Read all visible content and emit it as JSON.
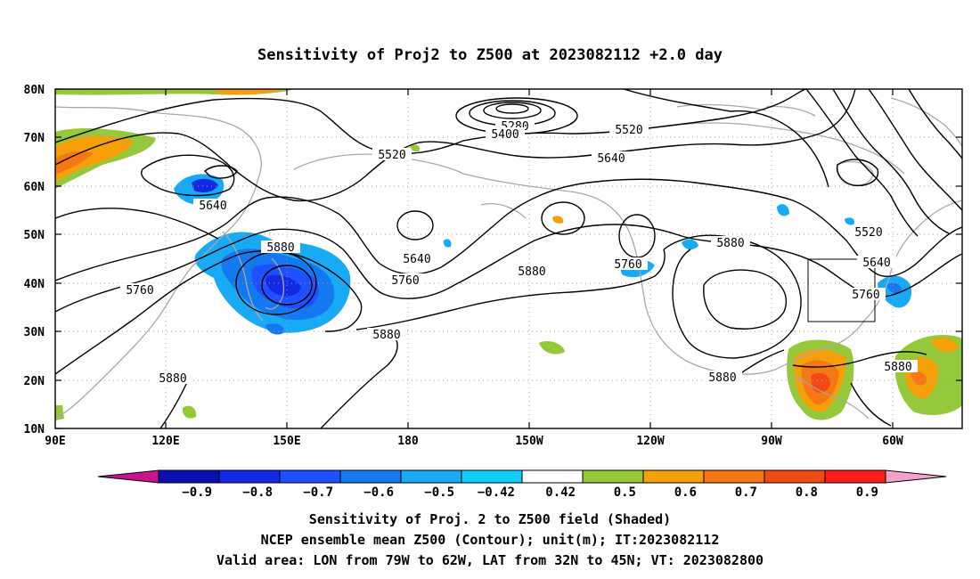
{
  "title": "Sensitivity of Proj2 to Z500 at 2023082112 +2.0 day",
  "axes": {
    "lat_labels": [
      "80N",
      "70N",
      "60N",
      "50N",
      "40N",
      "30N",
      "20N",
      "10N"
    ],
    "lon_labels": [
      "90E",
      "120E",
      "150E",
      "180",
      "150W",
      "120W",
      "90W",
      "60W"
    ]
  },
  "contour_labels": [
    {
      "text": "5280"
    },
    {
      "text": "5400"
    },
    {
      "text": "5520"
    },
    {
      "text": "5520"
    },
    {
      "text": "5640"
    },
    {
      "text": "5640"
    },
    {
      "text": "5640"
    },
    {
      "text": "5640"
    },
    {
      "text": "5760"
    },
    {
      "text": "5760"
    },
    {
      "text": "5760"
    },
    {
      "text": "5760"
    },
    {
      "text": "5880"
    },
    {
      "text": "5880"
    },
    {
      "text": "5880"
    },
    {
      "text": "5880"
    },
    {
      "text": "5880"
    },
    {
      "text": "5880"
    },
    {
      "text": "5880"
    },
    {
      "text": "5520"
    }
  ],
  "colorbar": {
    "labels": [
      "-0.9",
      "-0.8",
      "-0.7",
      "-0.6",
      "-0.5",
      "-0.42",
      "0.42",
      "0.5",
      "0.6",
      "0.7",
      "0.8",
      "0.9"
    ],
    "colors": [
      "#0b0fb0",
      "#1429e6",
      "#1e50ff",
      "#1478f0",
      "#19aaf5",
      "#0fcdff",
      "#ffffff",
      "#96c83c",
      "#f5a00a",
      "#f57814",
      "#f04b14",
      "#ff1e1e"
    ],
    "end_low": "#c8148c",
    "end_high": "#f5a0c8"
  },
  "caption": {
    "line1": "Sensitivity of Proj. 2 to Z500 field (Shaded)",
    "line2": "NCEP ensemble mean Z500 (Contour); unit(m); IT:2023082112",
    "line3": "Valid area: LON from 79W to 62W, LAT from 32N to 45N; VT: 2023082800"
  },
  "colors": {
    "coast": "#a8a8a8",
    "contour": "#000000",
    "grid": "#a0a0a0"
  }
}
